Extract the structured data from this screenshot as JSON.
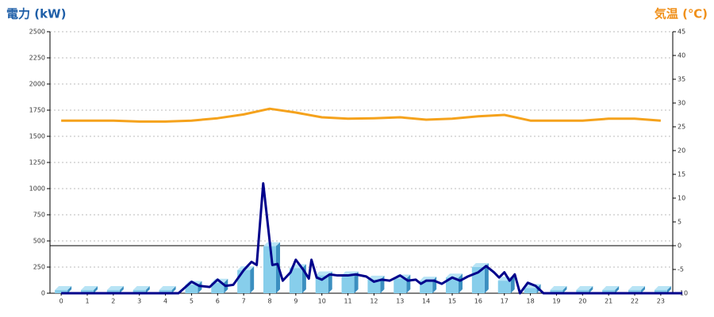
{
  "chart_data": {
    "type": "bar",
    "ylabel": "電力 (kW)",
    "y2label": "気温 (℃)",
    "categories": [
      "0",
      "1",
      "2",
      "3",
      "4",
      "5",
      "6",
      "7",
      "8",
      "9",
      "10",
      "11",
      "12",
      "13",
      "14",
      "15",
      "16",
      "17",
      "18",
      "19",
      "20",
      "21",
      "22",
      "23"
    ],
    "xlim": [
      -0.43,
      23.46
    ],
    "ylim": [
      0,
      2500
    ],
    "yticks": [
      0,
      250,
      500,
      750,
      1000,
      1250,
      1500,
      1750,
      2000,
      2250,
      2500
    ],
    "y2lim": [
      -10,
      45
    ],
    "y2ticks": [
      -10,
      -5,
      0,
      5,
      10,
      15,
      20,
      25,
      30,
      35,
      40,
      45
    ],
    "grid": true,
    "series": [
      {
        "type": "bar",
        "color": "#87ceeb",
        "values": [
          30,
          30,
          30,
          30,
          30,
          80,
          100,
          220,
          450,
          240,
          170,
          170,
          130,
          140,
          120,
          150,
          250,
          120,
          50,
          30,
          30,
          30,
          30,
          30
        ]
      },
      {
        "type": "line",
        "color": "#00008b",
        "x": [
          0,
          4.5,
          5,
          5.3,
          5.7,
          6,
          6.3,
          6.6,
          7,
          7.3,
          7.5,
          7.75,
          8.1,
          8.3,
          8.5,
          8.8,
          9,
          9.3,
          9.5,
          9.6,
          9.8,
          10,
          10.3,
          10.6,
          11,
          11.3,
          11.7,
          12,
          12.3,
          12.6,
          13,
          13.3,
          13.6,
          13.8,
          14,
          14.3,
          14.6,
          15,
          15.3,
          15.6,
          16,
          16.3,
          16.6,
          16.8,
          17,
          17.2,
          17.4,
          17.6,
          17.9,
          18.2,
          18.5,
          23.83
        ],
        "values": [
          0,
          0,
          110,
          70,
          60,
          130,
          70,
          80,
          220,
          300,
          270,
          1050,
          270,
          280,
          120,
          200,
          320,
          220,
          140,
          320,
          150,
          130,
          180,
          170,
          170,
          180,
          160,
          110,
          130,
          120,
          170,
          120,
          130,
          90,
          120,
          120,
          90,
          150,
          120,
          160,
          200,
          260,
          200,
          150,
          200,
          120,
          180,
          0,
          100,
          70,
          0,
          0
        ]
      },
      {
        "type": "line",
        "axis": "y2",
        "color": "#f5a21c",
        "values": [
          26.3,
          26.3,
          26.3,
          26.1,
          26.1,
          26.3,
          26.8,
          27.6,
          28.8,
          28,
          27,
          26.7,
          26.8,
          27,
          26.5,
          26.7,
          27.2,
          27.5,
          26.3,
          26.3,
          26.3,
          26.7,
          26.7,
          26.3
        ]
      }
    ]
  }
}
